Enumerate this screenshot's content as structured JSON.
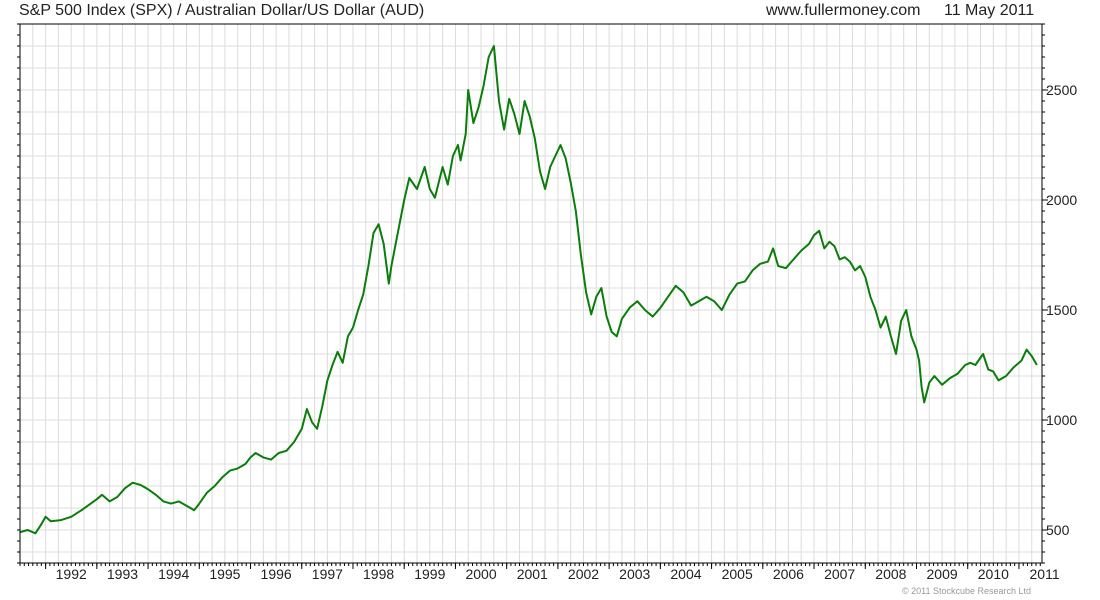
{
  "header": {
    "title": "S&P 500 Index (SPX) / Australian Dollar/US Dollar (AUD)",
    "site": "www.fullermoney.com",
    "date": "11 May 2011"
  },
  "footer": {
    "copyright": "© 2011 Stockcube Research Ltd"
  },
  "colors": {
    "line": "#0a7d0a",
    "grid": "#dcdcdc",
    "frame": "#000000"
  },
  "chart_data": {
    "type": "line",
    "title": "S&P 500 Index (SPX) / Australian Dollar/US Dollar (AUD)",
    "xlabel": "",
    "ylabel": "",
    "xlim": [
      1991.5,
      2011.45
    ],
    "ylim": [
      350,
      2800
    ],
    "y_axis_side": "right",
    "grid": true,
    "legend": "none",
    "x_ticks": [
      {
        "value": 1992,
        "label": "1992"
      },
      {
        "value": 1993,
        "label": "1993"
      },
      {
        "value": 1994,
        "label": "1994"
      },
      {
        "value": 1995,
        "label": "1995"
      },
      {
        "value": 1996,
        "label": "1996"
      },
      {
        "value": 1997,
        "label": "1997"
      },
      {
        "value": 1998,
        "label": "1998"
      },
      {
        "value": 1999,
        "label": "1999"
      },
      {
        "value": 2000,
        "label": "2000"
      },
      {
        "value": 2001,
        "label": "2001"
      },
      {
        "value": 2002,
        "label": "2002"
      },
      {
        "value": 2003,
        "label": "2003"
      },
      {
        "value": 2004,
        "label": "2004"
      },
      {
        "value": 2005,
        "label": "2005"
      },
      {
        "value": 2006,
        "label": "2006"
      },
      {
        "value": 2007,
        "label": "2007"
      },
      {
        "value": 2008,
        "label": "2008"
      },
      {
        "value": 2009,
        "label": "2009"
      },
      {
        "value": 2010,
        "label": "2010"
      },
      {
        "value": 2011,
        "label": "2011"
      }
    ],
    "y_ticks": [
      {
        "value": 500,
        "label": "500"
      },
      {
        "value": 1000,
        "label": "1000"
      },
      {
        "value": 1500,
        "label": "1500"
      },
      {
        "value": 2000,
        "label": "2000"
      },
      {
        "value": 2500,
        "label": "2500"
      }
    ],
    "series": [
      {
        "points": [
          [
            1991.5,
            490
          ],
          [
            1991.65,
            500
          ],
          [
            1991.8,
            485
          ],
          [
            1991.9,
            520
          ],
          [
            1992.0,
            560
          ],
          [
            1992.1,
            540
          ],
          [
            1992.3,
            545
          ],
          [
            1992.5,
            560
          ],
          [
            1992.7,
            590
          ],
          [
            1992.85,
            615
          ],
          [
            1993.0,
            640
          ],
          [
            1993.1,
            660
          ],
          [
            1993.25,
            630
          ],
          [
            1993.4,
            650
          ],
          [
            1993.55,
            690
          ],
          [
            1993.7,
            715
          ],
          [
            1993.85,
            705
          ],
          [
            1994.0,
            685
          ],
          [
            1994.15,
            660
          ],
          [
            1994.3,
            630
          ],
          [
            1994.45,
            620
          ],
          [
            1994.6,
            630
          ],
          [
            1994.75,
            610
          ],
          [
            1994.9,
            590
          ],
          [
            1995.0,
            620
          ],
          [
            1995.15,
            670
          ],
          [
            1995.3,
            700
          ],
          [
            1995.45,
            740
          ],
          [
            1995.6,
            770
          ],
          [
            1995.75,
            780
          ],
          [
            1995.9,
            800
          ],
          [
            1996.0,
            830
          ],
          [
            1996.1,
            850
          ],
          [
            1996.25,
            830
          ],
          [
            1996.4,
            820
          ],
          [
            1996.55,
            850
          ],
          [
            1996.7,
            860
          ],
          [
            1996.85,
            900
          ],
          [
            1997.0,
            960
          ],
          [
            1997.1,
            1050
          ],
          [
            1997.2,
            990
          ],
          [
            1997.3,
            960
          ],
          [
            1997.4,
            1060
          ],
          [
            1997.5,
            1180
          ],
          [
            1997.6,
            1250
          ],
          [
            1997.7,
            1310
          ],
          [
            1997.8,
            1260
          ],
          [
            1997.9,
            1380
          ],
          [
            1998.0,
            1420
          ],
          [
            1998.1,
            1500
          ],
          [
            1998.2,
            1570
          ],
          [
            1998.3,
            1700
          ],
          [
            1998.4,
            1850
          ],
          [
            1998.5,
            1890
          ],
          [
            1998.6,
            1800
          ],
          [
            1998.7,
            1620
          ],
          [
            1998.75,
            1700
          ],
          [
            1998.85,
            1820
          ],
          [
            1999.0,
            2000
          ],
          [
            1999.1,
            2100
          ],
          [
            1999.25,
            2050
          ],
          [
            1999.4,
            2150
          ],
          [
            1999.5,
            2050
          ],
          [
            1999.6,
            2010
          ],
          [
            1999.75,
            2150
          ],
          [
            1999.85,
            2070
          ],
          [
            1999.95,
            2200
          ],
          [
            2000.05,
            2250
          ],
          [
            2000.1,
            2180
          ],
          [
            2000.2,
            2300
          ],
          [
            2000.25,
            2500
          ],
          [
            2000.35,
            2350
          ],
          [
            2000.45,
            2420
          ],
          [
            2000.55,
            2520
          ],
          [
            2000.65,
            2650
          ],
          [
            2000.75,
            2700
          ],
          [
            2000.85,
            2450
          ],
          [
            2000.95,
            2320
          ],
          [
            2001.05,
            2460
          ],
          [
            2001.15,
            2390
          ],
          [
            2001.25,
            2300
          ],
          [
            2001.35,
            2450
          ],
          [
            2001.45,
            2380
          ],
          [
            2001.55,
            2280
          ],
          [
            2001.65,
            2130
          ],
          [
            2001.75,
            2050
          ],
          [
            2001.85,
            2150
          ],
          [
            2001.95,
            2200
          ],
          [
            2002.05,
            2250
          ],
          [
            2002.15,
            2190
          ],
          [
            2002.25,
            2080
          ],
          [
            2002.35,
            1950
          ],
          [
            2002.45,
            1750
          ],
          [
            2002.55,
            1580
          ],
          [
            2002.65,
            1480
          ],
          [
            2002.75,
            1560
          ],
          [
            2002.85,
            1600
          ],
          [
            2002.95,
            1470
          ],
          [
            2003.05,
            1400
          ],
          [
            2003.15,
            1380
          ],
          [
            2003.25,
            1460
          ],
          [
            2003.4,
            1510
          ],
          [
            2003.55,
            1540
          ],
          [
            2003.7,
            1500
          ],
          [
            2003.85,
            1470
          ],
          [
            2004.0,
            1510
          ],
          [
            2004.15,
            1560
          ],
          [
            2004.3,
            1610
          ],
          [
            2004.45,
            1580
          ],
          [
            2004.6,
            1520
          ],
          [
            2004.75,
            1540
          ],
          [
            2004.9,
            1560
          ],
          [
            2005.05,
            1540
          ],
          [
            2005.2,
            1500
          ],
          [
            2005.35,
            1570
          ],
          [
            2005.5,
            1620
          ],
          [
            2005.65,
            1630
          ],
          [
            2005.8,
            1680
          ],
          [
            2005.95,
            1710
          ],
          [
            2006.1,
            1720
          ],
          [
            2006.2,
            1780
          ],
          [
            2006.3,
            1700
          ],
          [
            2006.45,
            1690
          ],
          [
            2006.6,
            1730
          ],
          [
            2006.75,
            1770
          ],
          [
            2006.9,
            1800
          ],
          [
            2007.0,
            1840
          ],
          [
            2007.1,
            1860
          ],
          [
            2007.2,
            1780
          ],
          [
            2007.3,
            1810
          ],
          [
            2007.4,
            1790
          ],
          [
            2007.5,
            1730
          ],
          [
            2007.6,
            1740
          ],
          [
            2007.7,
            1720
          ],
          [
            2007.8,
            1680
          ],
          [
            2007.9,
            1700
          ],
          [
            2008.0,
            1650
          ],
          [
            2008.1,
            1560
          ],
          [
            2008.2,
            1500
          ],
          [
            2008.3,
            1420
          ],
          [
            2008.4,
            1470
          ],
          [
            2008.5,
            1380
          ],
          [
            2008.6,
            1300
          ],
          [
            2008.7,
            1450
          ],
          [
            2008.8,
            1500
          ],
          [
            2008.9,
            1380
          ],
          [
            2009.0,
            1320
          ],
          [
            2009.05,
            1270
          ],
          [
            2009.1,
            1150
          ],
          [
            2009.15,
            1080
          ],
          [
            2009.25,
            1170
          ],
          [
            2009.35,
            1200
          ],
          [
            2009.5,
            1160
          ],
          [
            2009.65,
            1190
          ],
          [
            2009.8,
            1210
          ],
          [
            2009.95,
            1250
          ],
          [
            2010.05,
            1260
          ],
          [
            2010.15,
            1250
          ],
          [
            2010.3,
            1300
          ],
          [
            2010.4,
            1230
          ],
          [
            2010.5,
            1220
          ],
          [
            2010.6,
            1180
          ],
          [
            2010.75,
            1200
          ],
          [
            2010.9,
            1240
          ],
          [
            2011.05,
            1270
          ],
          [
            2011.15,
            1320
          ],
          [
            2011.25,
            1290
          ],
          [
            2011.35,
            1250
          ]
        ]
      }
    ]
  }
}
